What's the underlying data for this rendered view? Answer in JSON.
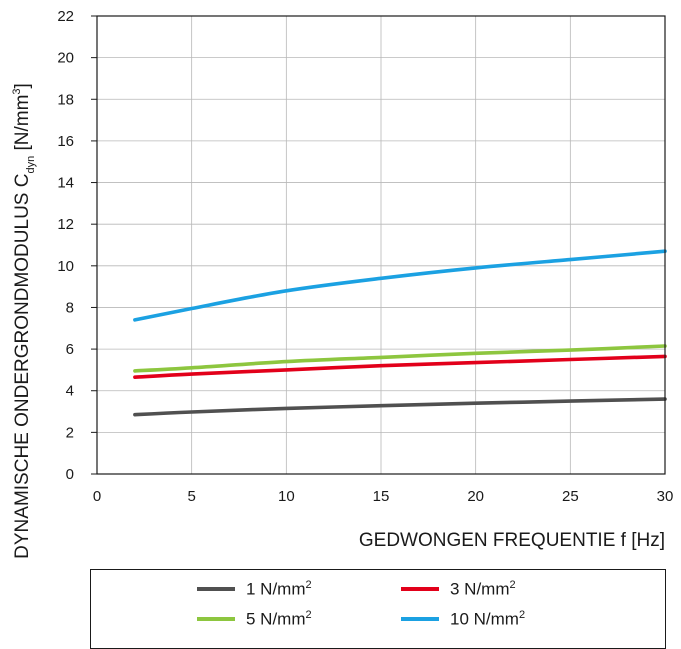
{
  "chart_data": {
    "type": "line",
    "xlabel": "GEDWONGEN FREQUENTIE f [Hz]",
    "ylabel": {
      "main": "DYNAMISCHE ONDERGRONDMODULUS C",
      "subscript": "dyn",
      "unit_open": " [N/mm",
      "unit_sup": "3",
      "unit_close": "]"
    },
    "xlim": [
      0,
      30
    ],
    "ylim": [
      0,
      22
    ],
    "xticks": [
      "0",
      "5",
      "10",
      "15",
      "20",
      "25",
      "30"
    ],
    "yticks": [
      "0",
      "2",
      "4",
      "6",
      "8",
      "10",
      "12",
      "14",
      "16",
      "18",
      "20",
      "22"
    ],
    "grid": true,
    "legend_position": "bottom",
    "x": [
      2,
      5,
      10,
      15,
      20,
      25,
      30
    ],
    "series": [
      {
        "name": "1 N/mm",
        "name_sup": "2",
        "color": "#505050",
        "values": [
          2.85,
          2.98,
          3.15,
          3.28,
          3.4,
          3.5,
          3.6
        ]
      },
      {
        "name": "3 N/mm",
        "name_sup": "2",
        "color": "#e2001a",
        "values": [
          4.65,
          4.8,
          5.0,
          5.2,
          5.35,
          5.5,
          5.65
        ]
      },
      {
        "name": "5 N/mm",
        "name_sup": "2",
        "color": "#8dc63f",
        "values": [
          4.95,
          5.1,
          5.4,
          5.6,
          5.8,
          5.95,
          6.15
        ]
      },
      {
        "name": "10 N/mm",
        "name_sup": "2",
        "color": "#1ba1e2",
        "values": [
          7.4,
          7.95,
          8.8,
          9.4,
          9.9,
          10.3,
          10.7
        ]
      }
    ]
  }
}
